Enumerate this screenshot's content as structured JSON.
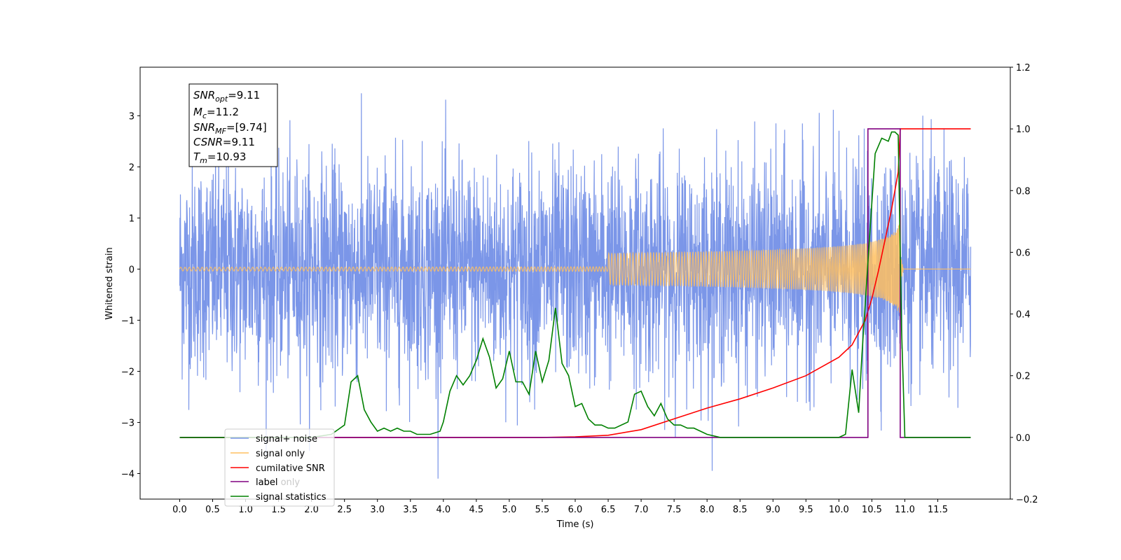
{
  "chart_data": {
    "type": "line",
    "title": "",
    "xlabel": "Time (s)",
    "ylabel": "Whitened strain",
    "xlim": [
      -0.6,
      12.6
    ],
    "ylim": [
      -4.5,
      3.95
    ],
    "y2lim": [
      -0.2,
      1.2
    ],
    "x_ticks": [
      "0.0",
      "0.5",
      "1.0",
      "1.5",
      "2.0",
      "2.5",
      "3.0",
      "3.5",
      "4.0",
      "4.5",
      "5.0",
      "5.5",
      "6.0",
      "6.5",
      "7.0",
      "7.5",
      "8.0",
      "8.5",
      "9.0",
      "9.5",
      "10.0",
      "10.5",
      "11.0",
      "11.5"
    ],
    "y_ticks": [
      "3",
      "2",
      "1",
      "0",
      "−1",
      "−2",
      "−3",
      "−4"
    ],
    "y2_ticks": [
      "1.2",
      "1.0",
      "0.8",
      "0.6",
      "0.4",
      "0.2",
      "0.0",
      "−0.2"
    ],
    "grid": false,
    "legend_position": "lower-left",
    "annotation": {
      "snr_opt": {
        "base": "SNR",
        "sub": "opt",
        "value": "=9.11"
      },
      "mc": {
        "base": "M",
        "sub": "c",
        "value": "=11.2"
      },
      "snr_mf": {
        "base": "SNR",
        "sub": "MF",
        "value": "=[9.74]"
      },
      "csnr": {
        "base": "CSNR",
        "sub": "",
        "value": "=9.11"
      },
      "tm": {
        "base": "T",
        "sub": "m",
        "value": "=10.93"
      }
    },
    "series": [
      {
        "name": "signal+ noise",
        "color": "#7b96e8",
        "axis": "left",
        "kind": "noisy strain, amplitude approx ±3.6, spanning 0 to 12.0 s"
      },
      {
        "name": "signal only",
        "color": "#ffc060",
        "axis": "left",
        "kind": "chirp growing to amplitude ~0.9 at merger 10.93 s"
      },
      {
        "name": "cumilative SNR",
        "color": "#ff0000",
        "axis": "right",
        "x": [
          0,
          5.5,
          6.0,
          6.5,
          7.0,
          7.5,
          8.0,
          8.5,
          9.0,
          9.5,
          10.0,
          10.2,
          10.4,
          10.5,
          10.6,
          10.7,
          10.8,
          10.9,
          10.93,
          11.0,
          12.0
        ],
        "y": [
          0,
          0,
          0.002,
          0.007,
          0.025,
          0.06,
          0.095,
          0.125,
          0.16,
          0.2,
          0.26,
          0.3,
          0.38,
          0.45,
          0.54,
          0.64,
          0.74,
          0.86,
          1.0,
          1.0,
          1.0
        ]
      },
      {
        "name": "label",
        "color": "#800080",
        "axis": "right",
        "x": [
          0,
          10.44,
          10.44,
          10.93,
          10.93,
          12.0
        ],
        "y": [
          0,
          0,
          1,
          1,
          0,
          0
        ]
      },
      {
        "name": "label only",
        "color": "#8a8a8a",
        "axis": "right",
        "kind": "hidden beneath other curves"
      },
      {
        "name": "signal statistics",
        "color": "#008000",
        "axis": "right",
        "x": [
          0,
          2.0,
          2.3,
          2.5,
          2.6,
          2.7,
          2.8,
          2.9,
          3.0,
          3.1,
          3.2,
          3.3,
          3.4,
          3.5,
          3.6,
          3.8,
          3.95,
          4.0,
          4.1,
          4.2,
          4.3,
          4.4,
          4.5,
          4.6,
          4.7,
          4.8,
          4.9,
          5.0,
          5.1,
          5.2,
          5.3,
          5.4,
          5.5,
          5.6,
          5.7,
          5.8,
          5.9,
          6.0,
          6.1,
          6.2,
          6.3,
          6.4,
          6.5,
          6.6,
          6.8,
          6.9,
          7.0,
          7.1,
          7.2,
          7.3,
          7.4,
          7.5,
          7.6,
          7.7,
          7.8,
          8.0,
          8.2,
          10.0,
          10.1,
          10.2,
          10.3,
          10.35,
          10.45,
          10.55,
          10.65,
          10.75,
          10.8,
          10.85,
          10.9,
          10.95,
          11.0,
          12.0
        ],
        "y": [
          0,
          0,
          0.01,
          0.04,
          0.18,
          0.2,
          0.09,
          0.05,
          0.02,
          0.03,
          0.02,
          0.03,
          0.02,
          0.02,
          0.01,
          0.01,
          0.02,
          0.05,
          0.15,
          0.2,
          0.17,
          0.2,
          0.25,
          0.32,
          0.26,
          0.16,
          0.19,
          0.28,
          0.18,
          0.18,
          0.14,
          0.28,
          0.18,
          0.25,
          0.42,
          0.24,
          0.2,
          0.1,
          0.11,
          0.06,
          0.04,
          0.04,
          0.03,
          0.03,
          0.05,
          0.14,
          0.15,
          0.1,
          0.07,
          0.11,
          0.06,
          0.04,
          0.04,
          0.03,
          0.03,
          0.01,
          0,
          0,
          0.01,
          0.22,
          0.08,
          0.27,
          0.6,
          0.92,
          0.97,
          0.96,
          0.99,
          0.99,
          0.98,
          0.35,
          0,
          0
        ]
      }
    ]
  }
}
